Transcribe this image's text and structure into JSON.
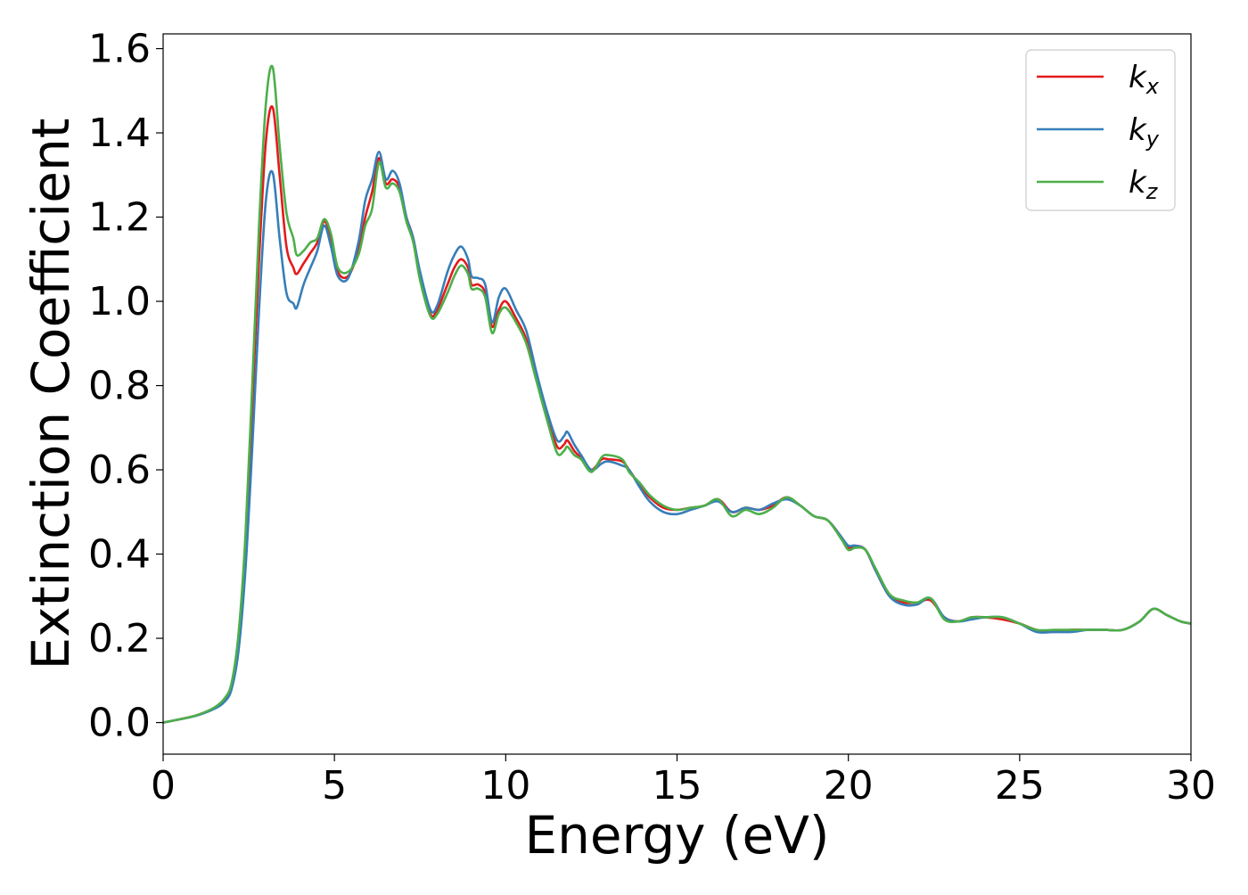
{
  "chart_data": {
    "type": "line",
    "title": "",
    "xlabel": "Energy (eV)",
    "ylabel": "Extinction Coefficient",
    "xlim": [
      0,
      30
    ],
    "ylim": [
      -0.075,
      1.635
    ],
    "xticks": [
      0,
      5,
      10,
      15,
      20,
      25,
      30
    ],
    "xtick_labels": [
      "0",
      "5",
      "10",
      "15",
      "20",
      "25",
      "30"
    ],
    "yticks": [
      0.0,
      0.2,
      0.4,
      0.6,
      0.8,
      1.0,
      1.2,
      1.4,
      1.6
    ],
    "ytick_labels": [
      "0.0",
      "0.2",
      "0.4",
      "0.6",
      "0.8",
      "1.0",
      "1.2",
      "1.4",
      "1.6"
    ],
    "grid": false,
    "legend": {
      "placement": "top-right",
      "entries": [
        {
          "base": "k",
          "sub": "x",
          "color": "#e41a1c"
        },
        {
          "base": "k",
          "sub": "y",
          "color": "#377eb8"
        },
        {
          "base": "k",
          "sub": "z",
          "color": "#4daf4a"
        }
      ]
    },
    "series": [
      {
        "color": "#e41a1c",
        "points": [
          [
            0,
            0.0
          ],
          [
            0.5,
            0.008
          ],
          [
            1.0,
            0.018
          ],
          [
            1.5,
            0.035
          ],
          [
            1.8,
            0.055
          ],
          [
            2.0,
            0.09
          ],
          [
            2.2,
            0.2
          ],
          [
            2.4,
            0.42
          ],
          [
            2.6,
            0.75
          ],
          [
            2.8,
            1.1
          ],
          [
            3.0,
            1.38
          ],
          [
            3.2,
            1.46
          ],
          [
            3.4,
            1.3
          ],
          [
            3.6,
            1.13
          ],
          [
            3.8,
            1.08
          ],
          [
            3.9,
            1.065
          ],
          [
            4.1,
            1.09
          ],
          [
            4.3,
            1.115
          ],
          [
            4.5,
            1.14
          ],
          [
            4.7,
            1.19
          ],
          [
            4.9,
            1.15
          ],
          [
            5.1,
            1.07
          ],
          [
            5.4,
            1.06
          ],
          [
            5.7,
            1.12
          ],
          [
            5.9,
            1.2
          ],
          [
            6.1,
            1.26
          ],
          [
            6.3,
            1.34
          ],
          [
            6.5,
            1.28
          ],
          [
            6.7,
            1.29
          ],
          [
            6.9,
            1.27
          ],
          [
            7.1,
            1.2
          ],
          [
            7.3,
            1.15
          ],
          [
            7.5,
            1.06
          ],
          [
            7.8,
            0.97
          ],
          [
            8.0,
            0.98
          ],
          [
            8.3,
            1.04
          ],
          [
            8.5,
            1.08
          ],
          [
            8.7,
            1.1
          ],
          [
            8.9,
            1.08
          ],
          [
            9.0,
            1.04
          ],
          [
            9.2,
            1.04
          ],
          [
            9.4,
            1.02
          ],
          [
            9.6,
            0.94
          ],
          [
            9.8,
            0.98
          ],
          [
            10.0,
            1.0
          ],
          [
            10.3,
            0.96
          ],
          [
            10.6,
            0.91
          ],
          [
            10.9,
            0.82
          ],
          [
            11.2,
            0.73
          ],
          [
            11.5,
            0.655
          ],
          [
            11.7,
            0.66
          ],
          [
            11.8,
            0.67
          ],
          [
            12.0,
            0.645
          ],
          [
            12.2,
            0.628
          ],
          [
            12.5,
            0.6
          ],
          [
            12.8,
            0.625
          ],
          [
            13.0,
            0.625
          ],
          [
            13.4,
            0.62
          ],
          [
            13.6,
            0.6
          ],
          [
            13.9,
            0.565
          ],
          [
            14.2,
            0.535
          ],
          [
            14.6,
            0.51
          ],
          [
            15.0,
            0.505
          ],
          [
            15.4,
            0.51
          ],
          [
            15.8,
            0.515
          ],
          [
            16.2,
            0.53
          ],
          [
            16.6,
            0.5
          ],
          [
            17.0,
            0.51
          ],
          [
            17.4,
            0.505
          ],
          [
            17.8,
            0.515
          ],
          [
            18.2,
            0.535
          ],
          [
            18.6,
            0.515
          ],
          [
            19.0,
            0.49
          ],
          [
            19.4,
            0.48
          ],
          [
            19.8,
            0.44
          ],
          [
            20.0,
            0.415
          ],
          [
            20.2,
            0.42
          ],
          [
            20.5,
            0.41
          ],
          [
            20.8,
            0.36
          ],
          [
            21.2,
            0.3
          ],
          [
            21.6,
            0.285
          ],
          [
            22.0,
            0.285
          ],
          [
            22.4,
            0.29
          ],
          [
            22.8,
            0.25
          ],
          [
            23.2,
            0.24
          ],
          [
            23.6,
            0.25
          ],
          [
            24.0,
            0.25
          ],
          [
            24.5,
            0.245
          ],
          [
            25.0,
            0.235
          ],
          [
            25.5,
            0.22
          ],
          [
            26.0,
            0.215
          ],
          [
            26.5,
            0.22
          ],
          [
            27.0,
            0.22
          ],
          [
            27.5,
            0.22
          ],
          [
            28.0,
            0.22
          ],
          [
            28.5,
            0.24
          ],
          [
            28.9,
            0.27
          ],
          [
            29.3,
            0.255
          ],
          [
            29.7,
            0.24
          ],
          [
            30.0,
            0.235
          ]
        ]
      },
      {
        "color": "#377eb8",
        "points": [
          [
            0,
            0.0
          ],
          [
            0.5,
            0.008
          ],
          [
            1.0,
            0.017
          ],
          [
            1.5,
            0.033
          ],
          [
            1.8,
            0.05
          ],
          [
            2.0,
            0.08
          ],
          [
            2.2,
            0.17
          ],
          [
            2.4,
            0.36
          ],
          [
            2.6,
            0.65
          ],
          [
            2.8,
            0.98
          ],
          [
            3.0,
            1.24
          ],
          [
            3.2,
            1.305
          ],
          [
            3.4,
            1.15
          ],
          [
            3.6,
            1.02
          ],
          [
            3.8,
            0.995
          ],
          [
            3.9,
            0.985
          ],
          [
            4.1,
            1.04
          ],
          [
            4.3,
            1.08
          ],
          [
            4.5,
            1.12
          ],
          [
            4.7,
            1.18
          ],
          [
            4.9,
            1.13
          ],
          [
            5.1,
            1.06
          ],
          [
            5.4,
            1.055
          ],
          [
            5.7,
            1.14
          ],
          [
            5.9,
            1.24
          ],
          [
            6.1,
            1.29
          ],
          [
            6.3,
            1.355
          ],
          [
            6.5,
            1.29
          ],
          [
            6.7,
            1.31
          ],
          [
            6.9,
            1.28
          ],
          [
            7.1,
            1.2
          ],
          [
            7.3,
            1.15
          ],
          [
            7.5,
            1.07
          ],
          [
            7.8,
            0.98
          ],
          [
            8.0,
            0.99
          ],
          [
            8.3,
            1.07
          ],
          [
            8.5,
            1.11
          ],
          [
            8.7,
            1.13
          ],
          [
            8.9,
            1.1
          ],
          [
            9.0,
            1.06
          ],
          [
            9.2,
            1.055
          ],
          [
            9.4,
            1.04
          ],
          [
            9.6,
            0.95
          ],
          [
            9.8,
            1.01
          ],
          [
            10.0,
            1.03
          ],
          [
            10.3,
            0.98
          ],
          [
            10.6,
            0.93
          ],
          [
            10.9,
            0.83
          ],
          [
            11.2,
            0.74
          ],
          [
            11.5,
            0.67
          ],
          [
            11.7,
            0.68
          ],
          [
            11.8,
            0.69
          ],
          [
            12.0,
            0.66
          ],
          [
            12.2,
            0.635
          ],
          [
            12.5,
            0.6
          ],
          [
            12.8,
            0.615
          ],
          [
            13.0,
            0.62
          ],
          [
            13.4,
            0.61
          ],
          [
            13.6,
            0.6
          ],
          [
            13.9,
            0.56
          ],
          [
            14.2,
            0.525
          ],
          [
            14.6,
            0.5
          ],
          [
            15.0,
            0.495
          ],
          [
            15.4,
            0.505
          ],
          [
            15.8,
            0.515
          ],
          [
            16.2,
            0.525
          ],
          [
            16.6,
            0.5
          ],
          [
            17.0,
            0.51
          ],
          [
            17.4,
            0.505
          ],
          [
            17.8,
            0.52
          ],
          [
            18.2,
            0.53
          ],
          [
            18.6,
            0.515
          ],
          [
            19.0,
            0.49
          ],
          [
            19.4,
            0.48
          ],
          [
            19.8,
            0.44
          ],
          [
            20.0,
            0.42
          ],
          [
            20.2,
            0.42
          ],
          [
            20.5,
            0.41
          ],
          [
            20.8,
            0.36
          ],
          [
            21.2,
            0.3
          ],
          [
            21.6,
            0.28
          ],
          [
            22.0,
            0.28
          ],
          [
            22.4,
            0.295
          ],
          [
            22.8,
            0.25
          ],
          [
            23.2,
            0.24
          ],
          [
            23.6,
            0.245
          ],
          [
            24.0,
            0.25
          ],
          [
            24.5,
            0.25
          ],
          [
            25.0,
            0.235
          ],
          [
            25.5,
            0.215
          ],
          [
            26.0,
            0.215
          ],
          [
            26.5,
            0.215
          ],
          [
            27.0,
            0.22
          ],
          [
            27.5,
            0.22
          ],
          [
            28.0,
            0.22
          ],
          [
            28.5,
            0.24
          ],
          [
            28.9,
            0.27
          ],
          [
            29.3,
            0.255
          ],
          [
            29.7,
            0.24
          ],
          [
            30.0,
            0.235
          ]
        ]
      },
      {
        "color": "#4daf4a",
        "points": [
          [
            0,
            0.0
          ],
          [
            0.5,
            0.008
          ],
          [
            1.0,
            0.018
          ],
          [
            1.5,
            0.036
          ],
          [
            1.8,
            0.058
          ],
          [
            2.0,
            0.095
          ],
          [
            2.2,
            0.21
          ],
          [
            2.4,
            0.44
          ],
          [
            2.6,
            0.8
          ],
          [
            2.8,
            1.18
          ],
          [
            3.0,
            1.47
          ],
          [
            3.2,
            1.555
          ],
          [
            3.4,
            1.37
          ],
          [
            3.6,
            1.21
          ],
          [
            3.8,
            1.15
          ],
          [
            3.9,
            1.11
          ],
          [
            4.1,
            1.12
          ],
          [
            4.3,
            1.14
          ],
          [
            4.5,
            1.15
          ],
          [
            4.7,
            1.195
          ],
          [
            4.9,
            1.16
          ],
          [
            5.1,
            1.08
          ],
          [
            5.4,
            1.07
          ],
          [
            5.7,
            1.11
          ],
          [
            5.9,
            1.18
          ],
          [
            6.1,
            1.22
          ],
          [
            6.3,
            1.33
          ],
          [
            6.5,
            1.27
          ],
          [
            6.7,
            1.28
          ],
          [
            6.9,
            1.26
          ],
          [
            7.1,
            1.19
          ],
          [
            7.3,
            1.14
          ],
          [
            7.5,
            1.05
          ],
          [
            7.8,
            0.965
          ],
          [
            8.0,
            0.97
          ],
          [
            8.3,
            1.02
          ],
          [
            8.5,
            1.06
          ],
          [
            8.7,
            1.085
          ],
          [
            8.9,
            1.065
          ],
          [
            9.0,
            1.03
          ],
          [
            9.2,
            1.03
          ],
          [
            9.4,
            1.01
          ],
          [
            9.6,
            0.925
          ],
          [
            9.8,
            0.97
          ],
          [
            10.0,
            0.985
          ],
          [
            10.3,
            0.95
          ],
          [
            10.6,
            0.9
          ],
          [
            10.9,
            0.81
          ],
          [
            11.2,
            0.72
          ],
          [
            11.5,
            0.64
          ],
          [
            11.7,
            0.645
          ],
          [
            11.8,
            0.655
          ],
          [
            12.0,
            0.635
          ],
          [
            12.2,
            0.625
          ],
          [
            12.5,
            0.595
          ],
          [
            12.8,
            0.63
          ],
          [
            13.0,
            0.635
          ],
          [
            13.4,
            0.625
          ],
          [
            13.6,
            0.595
          ],
          [
            13.9,
            0.57
          ],
          [
            14.2,
            0.54
          ],
          [
            14.6,
            0.515
          ],
          [
            15.0,
            0.505
          ],
          [
            15.4,
            0.51
          ],
          [
            15.8,
            0.515
          ],
          [
            16.2,
            0.53
          ],
          [
            16.6,
            0.49
          ],
          [
            17.0,
            0.505
          ],
          [
            17.4,
            0.495
          ],
          [
            17.8,
            0.51
          ],
          [
            18.2,
            0.535
          ],
          [
            18.6,
            0.515
          ],
          [
            19.0,
            0.49
          ],
          [
            19.4,
            0.48
          ],
          [
            19.8,
            0.435
          ],
          [
            20.0,
            0.41
          ],
          [
            20.2,
            0.415
          ],
          [
            20.5,
            0.41
          ],
          [
            20.8,
            0.365
          ],
          [
            21.2,
            0.305
          ],
          [
            21.6,
            0.29
          ],
          [
            22.0,
            0.285
          ],
          [
            22.4,
            0.295
          ],
          [
            22.8,
            0.245
          ],
          [
            23.2,
            0.24
          ],
          [
            23.6,
            0.25
          ],
          [
            24.0,
            0.25
          ],
          [
            24.5,
            0.25
          ],
          [
            25.0,
            0.235
          ],
          [
            25.5,
            0.22
          ],
          [
            26.0,
            0.22
          ],
          [
            26.5,
            0.22
          ],
          [
            27.0,
            0.22
          ],
          [
            27.5,
            0.22
          ],
          [
            28.0,
            0.22
          ],
          [
            28.5,
            0.24
          ],
          [
            28.9,
            0.27
          ],
          [
            29.3,
            0.255
          ],
          [
            29.7,
            0.24
          ],
          [
            30.0,
            0.235
          ]
        ]
      }
    ]
  }
}
